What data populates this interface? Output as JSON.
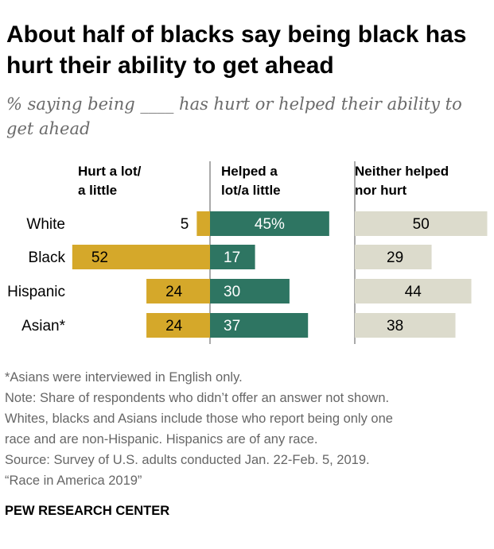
{
  "title": "About half of blacks say being black has hurt their ability to get ahead",
  "subtitle": "% saying being ____ has hurt or helped their ability to get ahead",
  "chart_data": {
    "type": "bar",
    "categories": [
      "White",
      "Black",
      "Hispanic",
      "Asian*"
    ],
    "series": [
      {
        "name": "Hurt a lot/ a little",
        "values": [
          5,
          52,
          24,
          24
        ],
        "labels": [
          "5",
          "52",
          "24",
          "24"
        ],
        "color": "#d5a82a"
      },
      {
        "name": "Helped a lot/a little",
        "values": [
          45,
          17,
          30,
          37
        ],
        "labels": [
          "45%",
          "17",
          "30",
          "37"
        ],
        "color": "#2e7562"
      },
      {
        "name": "Neither helped nor hurt",
        "values": [
          50,
          29,
          44,
          38
        ],
        "labels": [
          "50",
          "29",
          "44",
          "38"
        ],
        "color": "#dcdbcc"
      }
    ],
    "headers": [
      [
        "Hurt a lot/",
        "a little"
      ],
      [
        "Helped a",
        "lot/a little"
      ],
      [
        "Neither helped",
        "nor hurt"
      ]
    ]
  },
  "notes": [
    "*Asians were interviewed in English only.",
    "Note: Share of respondents who didn’t offer an answer not shown.",
    "Whites, blacks and Asians include those who report being only one",
    "race and are non-Hispanic. Hispanics are of any race.",
    "Source: Survey of U.S. adults conducted Jan. 22-Feb. 5, 2019.",
    "“Race in America 2019”"
  ],
  "footer": "PEW RESEARCH CENTER"
}
